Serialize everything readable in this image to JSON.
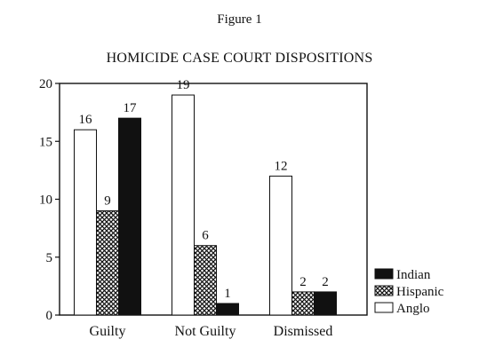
{
  "figure_label": "Figure 1",
  "chart_data": {
    "type": "bar",
    "title": "HOMICIDE CASE COURT DISPOSITIONS",
    "categories": [
      "Guilty",
      "Not Guilty",
      "Dismissed"
    ],
    "ylim": [
      0,
      20
    ],
    "yticks": [
      0,
      5,
      10,
      15,
      20
    ],
    "grid": false,
    "legend_position": "right",
    "series": [
      {
        "name": "Anglo",
        "pattern": "white",
        "values": [
          16,
          19,
          12
        ]
      },
      {
        "name": "Hispanic",
        "pattern": "crosshatch",
        "values": [
          9,
          6,
          2
        ]
      },
      {
        "name": "Indian",
        "pattern": "black",
        "values": [
          17,
          1,
          2
        ]
      }
    ],
    "legend_order": [
      "Indian",
      "Hispanic",
      "Anglo"
    ]
  }
}
